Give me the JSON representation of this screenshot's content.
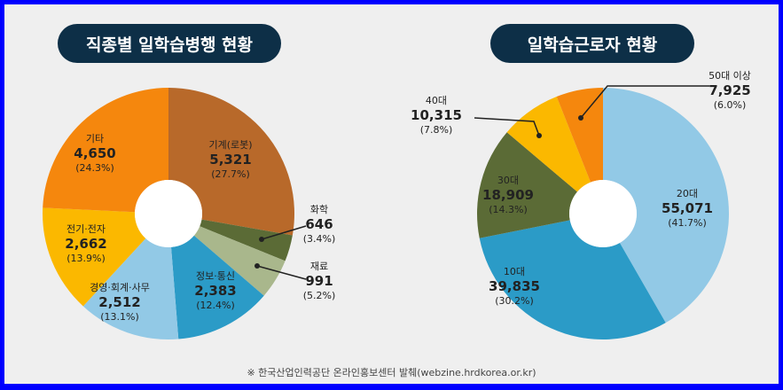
{
  "chart_data": [
    {
      "type": "pie",
      "donut": true,
      "title": "직종별 일학습병행 현황",
      "slices": [
        {
          "label": "기계(로봇)",
          "value": 5321,
          "percent": "27.7%",
          "color": "#b8692a"
        },
        {
          "label": "화학",
          "value": 646,
          "percent": "3.4%",
          "color": "#5b6b36"
        },
        {
          "label": "재료",
          "value": 991,
          "percent": "5.2%",
          "color": "#a9b78c"
        },
        {
          "label": "정보·통신",
          "value": 2383,
          "percent": "12.4%",
          "color": "#2b9bc7"
        },
        {
          "label": "경영·회계·사무",
          "value": 2512,
          "percent": "13.1%",
          "color": "#92c9e6"
        },
        {
          "label": "전기·전자",
          "value": 2662,
          "percent": "13.9%",
          "color": "#fbb800"
        },
        {
          "label": "기타",
          "value": 4650,
          "percent": "24.3%",
          "color": "#f5870d"
        }
      ]
    },
    {
      "type": "pie",
      "donut": true,
      "title": "일학습근로자 현황",
      "slices": [
        {
          "label": "20대",
          "value": 55071,
          "percent": "41.7%",
          "color": "#92c9e6"
        },
        {
          "label": "10대",
          "value": 39835,
          "percent": "30.2%",
          "color": "#2b9bc7"
        },
        {
          "label": "30대",
          "value": 18909,
          "percent": "14.3%",
          "color": "#5b6b36"
        },
        {
          "label": "40대",
          "value": 10315,
          "percent": "7.8%",
          "color": "#fbb800"
        },
        {
          "label": "50대 이상",
          "value": 7925,
          "percent": "6.0%",
          "color": "#f5870d"
        }
      ]
    }
  ],
  "note": "※ 한국산업인력공단 온라인홍보센터 발췌(webzine.hrdkorea.or.kr)"
}
